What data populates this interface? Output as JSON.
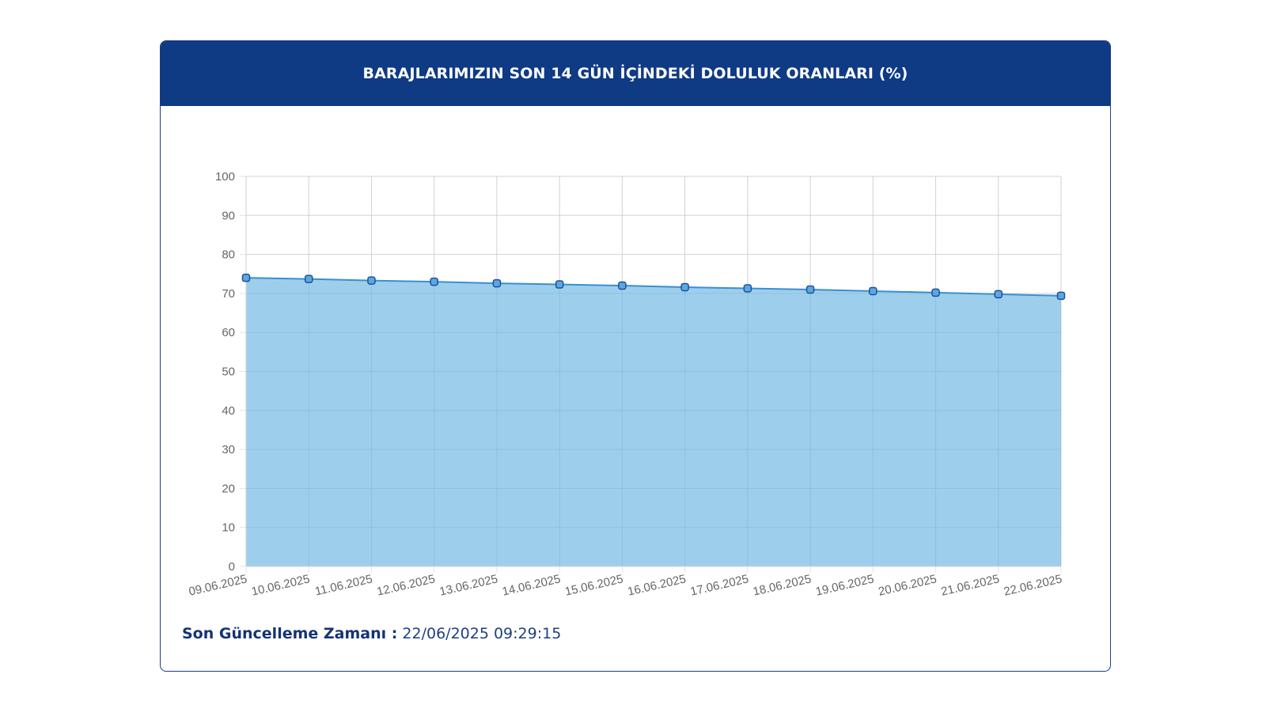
{
  "header": {
    "title": "BARAJLARIMIZIN SON 14 GÜN İÇİNDEKİ DOLULUK ORANLARI (%)"
  },
  "footer": {
    "label": "Son Güncelleme Zamanı :",
    "value": "22/06/2025 09:29:15"
  },
  "colors": {
    "header_bg": "#0f3a84",
    "area_fill": "#9dcfed",
    "line": "#3a8fd0",
    "point_fill": "#5ba8e0",
    "point_stroke": "#1f4f9a"
  },
  "chart_data": {
    "type": "area",
    "title": "BARAJLARIMIZIN SON 14 GÜN İÇİNDEKİ DOLULUK ORANLARI (%)",
    "xlabel": "",
    "ylabel": "",
    "categories": [
      "09.06.2025",
      "10.06.2025",
      "11.06.2025",
      "12.06.2025",
      "13.06.2025",
      "14.06.2025",
      "15.06.2025",
      "16.06.2025",
      "17.06.2025",
      "18.06.2025",
      "19.06.2025",
      "20.06.2025",
      "21.06.2025",
      "22.06.2025"
    ],
    "series": [
      {
        "values": [
          74.0,
          73.7,
          73.3,
          73.0,
          72.6,
          72.3,
          72.0,
          71.6,
          71.3,
          71.0,
          70.6,
          70.2,
          69.8,
          69.4
        ]
      }
    ],
    "ylim": [
      0,
      100
    ],
    "yticks": [
      0,
      10,
      20,
      30,
      40,
      50,
      60,
      70,
      80,
      90,
      100
    ],
    "grid": true,
    "legend": "none"
  }
}
